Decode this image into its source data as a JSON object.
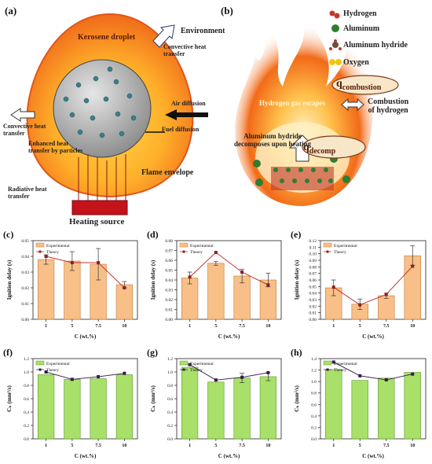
{
  "panel_a": {
    "label": "(a)",
    "environment": "Environment",
    "droplet": "Kerosene droplet",
    "convective_right": "Convective heat\ntransfer",
    "air_diffusion": "Air diffusion",
    "convective_left": "Convective heat\ntransfer",
    "fuel_diffusion": "Fuel diffusion",
    "enhanced": "Enhanced heat\ntransfer by particles",
    "flame_envelope": "Flame envelope",
    "radiative": "Radiative heat\ntransfer",
    "heating_source": "Heating source",
    "colors": {
      "flame_outer": "#f06a1a",
      "flame_inner": "#ffc23a",
      "particle_zone": "#a9a9a9",
      "heater": "#c4121a"
    }
  },
  "panel_b": {
    "label": "(b)",
    "legend": [
      {
        "name": "Hydrogen",
        "icon": "hydrogen-molecule-icon",
        "color": "#c0392b"
      },
      {
        "name": "Aluminum",
        "icon": "aluminum-atom-icon",
        "color": "#2e7d32"
      },
      {
        "name": "Aluminum hydride",
        "icon": "aluminum-hydride-icon",
        "color": "#6d4c41"
      },
      {
        "name": "Oxygen",
        "icon": "oxygen-molecule-icon",
        "color": "#f2c40f"
      }
    ],
    "q_combustion_sym": "q",
    "q_combustion_sub": "combustion",
    "q_decomp_sym": "q",
    "q_decomp_sub": "decomp",
    "hydrogen_escapes": "Hydrogen gas escapes",
    "combustion_h": "Combustion\nof hydrogen",
    "decomposes": "Aluminum hydride\ndecomposes upon heating"
  },
  "chart_data": [
    {
      "id": "c",
      "panel": "(c)",
      "type": "bar",
      "categories": [
        "1",
        "5",
        "7.5",
        "10"
      ],
      "values": [
        0.038,
        0.037,
        0.035,
        0.022
      ],
      "errors": [
        0.003,
        0.006,
        0.01,
        0.002
      ],
      "theory": [
        0.04,
        0.036,
        0.036,
        0.02
      ],
      "ylim": [
        0,
        0.05
      ],
      "ticks": [
        "0.00",
        "0.01",
        "0.02",
        "0.03",
        "0.04",
        "0.05"
      ],
      "tick_values": [
        0,
        0.01,
        0.02,
        0.03,
        0.04,
        0.05
      ],
      "ylabel": "Ignition delay (s)",
      "xlabel": "C (wt.%)",
      "legend": [
        "Experimental",
        "Theory"
      ]
    },
    {
      "id": "d",
      "panel": "(d)",
      "type": "bar",
      "categories": [
        "1",
        "5",
        "7.5",
        "10"
      ],
      "values": [
        0.042,
        0.057,
        0.044,
        0.04
      ],
      "errors": [
        0.006,
        0.002,
        0.007,
        0.007
      ],
      "theory": [
        0.043,
        0.068,
        0.048,
        0.035
      ],
      "ylim": [
        0,
        0.08
      ],
      "ticks": [
        "0.00",
        "0.01",
        "0.02",
        "0.03",
        "0.04",
        "0.05",
        "0.06",
        "0.07",
        "0.08"
      ],
      "tick_values": [
        0,
        0.01,
        0.02,
        0.03,
        0.04,
        0.05,
        0.06,
        0.07,
        0.08
      ],
      "ylabel": "Ignition delay (s)",
      "xlabel": "C (wt.%)",
      "legend": [
        "Experimental",
        "Theory"
      ]
    },
    {
      "id": "e",
      "panel": "(e)",
      "type": "bar",
      "categories": [
        "1",
        "5",
        "7.5",
        "10"
      ],
      "values": [
        0.048,
        0.023,
        0.036,
        0.097
      ],
      "errors": [
        0.012,
        0.008,
        0.004,
        0.015
      ],
      "theory": [
        0.049,
        0.022,
        0.038,
        0.081
      ],
      "ylim": [
        0,
        0.12
      ],
      "ticks": [
        "0.00",
        "0.01",
        "0.02",
        "0.03",
        "0.04",
        "0.05",
        "0.06",
        "0.07",
        "0.08",
        "0.09",
        "0.10",
        "0.11",
        "0.12"
      ],
      "tick_values": [
        0,
        0.01,
        0.02,
        0.03,
        0.04,
        0.05,
        0.06,
        0.07,
        0.08,
        0.09,
        0.1,
        0.11,
        0.12
      ],
      "ylabel": "Ignition delay (s)",
      "xlabel": "C (wt.%)",
      "legend": [
        "Experimental",
        "Theory"
      ]
    },
    {
      "id": "f",
      "panel": "(f)",
      "type": "bar",
      "categories": [
        "1",
        "5",
        "7.5",
        "10"
      ],
      "values": [
        0.96,
        0.89,
        0.9,
        0.96
      ],
      "errors": [
        0,
        0,
        0,
        0
      ],
      "theory": [
        1.0,
        0.89,
        0.93,
        0.98
      ],
      "ylim": [
        0,
        1.2
      ],
      "ticks": [
        "0.0",
        "0.2",
        "0.4",
        "0.6",
        "0.8",
        "1.0",
        "1.2"
      ],
      "tick_values": [
        0,
        0.2,
        0.4,
        0.6,
        0.8,
        1.0,
        1.2
      ],
      "ylabel": "Cₖ (mm²/s)",
      "xlabel": "C (wt.%)",
      "legend": [
        "Experimental",
        "Theory"
      ]
    },
    {
      "id": "g",
      "panel": "(g)",
      "type": "bar",
      "categories": [
        "1",
        "5",
        "7.5",
        "10"
      ],
      "values": [
        1.07,
        0.85,
        0.91,
        0.93
      ],
      "errors": [
        0,
        0,
        0.07,
        0.06
      ],
      "theory": [
        1.11,
        0.88,
        0.92,
        0.99
      ],
      "ylim": [
        0,
        1.2
      ],
      "ticks": [
        "0.0",
        "0.2",
        "0.4",
        "0.6",
        "0.8",
        "1.0",
        "1.2"
      ],
      "tick_values": [
        0,
        0.2,
        0.4,
        0.6,
        0.8,
        1.0,
        1.2
      ],
      "ylabel": "Cₖ (mm²/s)",
      "xlabel": "C (wt.%)",
      "legend": [
        "Experimental",
        "Theory"
      ]
    },
    {
      "id": "h",
      "panel": "(h)",
      "type": "bar",
      "categories": [
        "1",
        "5",
        "7.5",
        "10"
      ],
      "values": [
        1.21,
        1.02,
        1.06,
        1.16
      ],
      "errors": [
        0,
        0,
        0,
        0
      ],
      "theory": [
        1.34,
        1.1,
        1.03,
        1.13
      ],
      "ylim": [
        0,
        1.4
      ],
      "ticks": [
        "0.0",
        "0.2",
        "0.4",
        "0.6",
        "0.8",
        "1.0",
        "1.2",
        "1.4"
      ],
      "tick_values": [
        0,
        0.2,
        0.4,
        0.6,
        0.8,
        1.0,
        1.2,
        1.4
      ],
      "ylabel": "Cₖ (mm²/s)",
      "xlabel": "C (wt.%)",
      "legend": [
        "Experimental",
        "Theory"
      ]
    }
  ],
  "colors": {
    "delay_bar": "#f8c088",
    "delay_bar_edge": "#c07a3a",
    "k_bar": "#a8e06a",
    "k_bar_edge": "#5f9a2e",
    "theory_line": "#c0392b",
    "theory_line_k": "#4b2a5a",
    "theory_marker": "#8e1f1f",
    "theory_marker_k": "#3a1a48"
  }
}
